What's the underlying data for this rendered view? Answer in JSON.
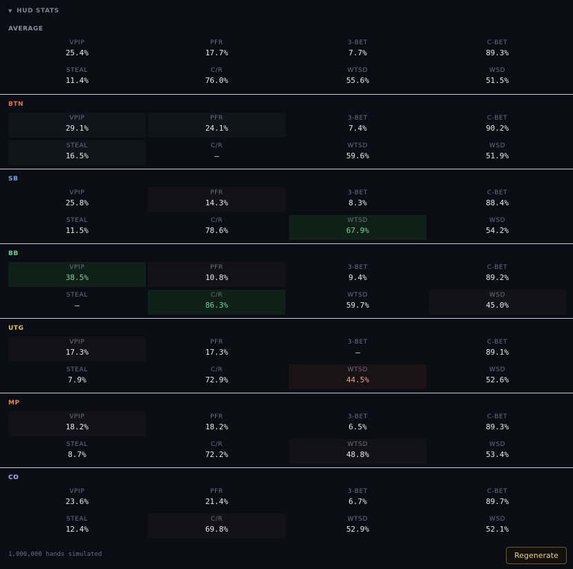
{
  "header": {
    "caret": "▼",
    "title": "HUD STATS"
  },
  "colors": {
    "average": "#8a8f99",
    "BTN": "#e8714f",
    "SB": "#7b9ff0",
    "BB": "#6fcf97",
    "UTG": "#e8c05a",
    "MP": "#e8834f",
    "CO": "#a9b2f5",
    "highlight_good": "#74d39a",
    "highlight_bad": "#e3a49a",
    "button_accent": "#e8cf86"
  },
  "sections": [
    {
      "name": "AVERAGE",
      "stats": [
        {
          "label": "VPIP",
          "value": "25.4%",
          "hl": ""
        },
        {
          "label": "PFR",
          "value": "17.7%",
          "hl": ""
        },
        {
          "label": "3-BET",
          "value": "7.7%",
          "hl": ""
        },
        {
          "label": "C-BET",
          "value": "89.3%",
          "hl": ""
        },
        {
          "label": "STEAL",
          "value": "11.4%",
          "hl": ""
        },
        {
          "label": "C/R",
          "value": "76.0%",
          "hl": ""
        },
        {
          "label": "WTSD",
          "value": "55.6%",
          "hl": ""
        },
        {
          "label": "WSD",
          "value": "51.5%",
          "hl": ""
        }
      ]
    },
    {
      "name": "BTN",
      "stats": [
        {
          "label": "VPIP",
          "value": "29.1%",
          "hl": "dark"
        },
        {
          "label": "PFR",
          "value": "24.1%",
          "hl": "dark"
        },
        {
          "label": "3-BET",
          "value": "7.4%",
          "hl": ""
        },
        {
          "label": "C-BET",
          "value": "90.2%",
          "hl": ""
        },
        {
          "label": "STEAL",
          "value": "16.5%",
          "hl": "dark"
        },
        {
          "label": "C/R",
          "value": "—",
          "hl": ""
        },
        {
          "label": "WTSD",
          "value": "59.6%",
          "hl": ""
        },
        {
          "label": "WSD",
          "value": "51.9%",
          "hl": ""
        }
      ]
    },
    {
      "name": "SB",
      "stats": [
        {
          "label": "VPIP",
          "value": "25.8%",
          "hl": ""
        },
        {
          "label": "PFR",
          "value": "14.3%",
          "hl": "warm"
        },
        {
          "label": "3-BET",
          "value": "8.3%",
          "hl": ""
        },
        {
          "label": "C-BET",
          "value": "88.4%",
          "hl": ""
        },
        {
          "label": "STEAL",
          "value": "11.5%",
          "hl": ""
        },
        {
          "label": "C/R",
          "value": "78.6%",
          "hl": ""
        },
        {
          "label": "WTSD",
          "value": "67.9%",
          "hl": "green"
        },
        {
          "label": "WSD",
          "value": "54.2%",
          "hl": ""
        }
      ]
    },
    {
      "name": "BB",
      "stats": [
        {
          "label": "VPIP",
          "value": "38.5%",
          "hl": "green"
        },
        {
          "label": "PFR",
          "value": "10.8%",
          "hl": "warm"
        },
        {
          "label": "3-BET",
          "value": "9.4%",
          "hl": ""
        },
        {
          "label": "C-BET",
          "value": "89.2%",
          "hl": ""
        },
        {
          "label": "STEAL",
          "value": "—",
          "hl": ""
        },
        {
          "label": "C/R",
          "value": "86.3%",
          "hl": "green"
        },
        {
          "label": "WTSD",
          "value": "59.7%",
          "hl": ""
        },
        {
          "label": "WSD",
          "value": "45.0%",
          "hl": "warm"
        }
      ]
    },
    {
      "name": "UTG",
      "stats": [
        {
          "label": "VPIP",
          "value": "17.3%",
          "hl": "warm"
        },
        {
          "label": "PFR",
          "value": "17.3%",
          "hl": ""
        },
        {
          "label": "3-BET",
          "value": "—",
          "hl": ""
        },
        {
          "label": "C-BET",
          "value": "89.1%",
          "hl": ""
        },
        {
          "label": "STEAL",
          "value": "7.9%",
          "hl": ""
        },
        {
          "label": "C/R",
          "value": "72.9%",
          "hl": ""
        },
        {
          "label": "WTSD",
          "value": "44.5%",
          "hl": "red"
        },
        {
          "label": "WSD",
          "value": "52.6%",
          "hl": ""
        }
      ]
    },
    {
      "name": "MP",
      "stats": [
        {
          "label": "VPIP",
          "value": "18.2%",
          "hl": "warm"
        },
        {
          "label": "PFR",
          "value": "18.2%",
          "hl": ""
        },
        {
          "label": "3-BET",
          "value": "6.5%",
          "hl": ""
        },
        {
          "label": "C-BET",
          "value": "89.3%",
          "hl": ""
        },
        {
          "label": "STEAL",
          "value": "8.7%",
          "hl": ""
        },
        {
          "label": "C/R",
          "value": "72.2%",
          "hl": ""
        },
        {
          "label": "WTSD",
          "value": "48.8%",
          "hl": "warm"
        },
        {
          "label": "WSD",
          "value": "53.4%",
          "hl": ""
        }
      ]
    },
    {
      "name": "CO",
      "stats": [
        {
          "label": "VPIP",
          "value": "23.6%",
          "hl": ""
        },
        {
          "label": "PFR",
          "value": "21.4%",
          "hl": ""
        },
        {
          "label": "3-BET",
          "value": "6.7%",
          "hl": ""
        },
        {
          "label": "C-BET",
          "value": "89.7%",
          "hl": ""
        },
        {
          "label": "STEAL",
          "value": "12.4%",
          "hl": ""
        },
        {
          "label": "C/R",
          "value": "69.8%",
          "hl": "warm"
        },
        {
          "label": "WTSD",
          "value": "52.9%",
          "hl": ""
        },
        {
          "label": "WSD",
          "value": "52.1%",
          "hl": ""
        }
      ]
    }
  ],
  "footer": {
    "hands_text": "1,000,000 hands simulated",
    "regenerate_label": "Regenerate"
  }
}
